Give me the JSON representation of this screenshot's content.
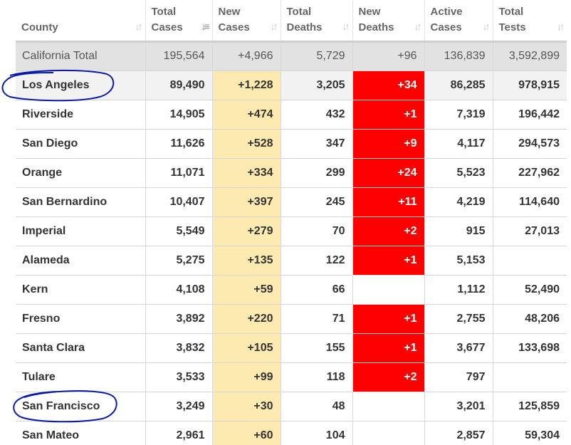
{
  "headers": [
    {
      "line1": "County",
      "line2": "",
      "icon": "sort-icon"
    },
    {
      "line1": "Total",
      "line2": "Cases",
      "icon": "sort-desc-icon"
    },
    {
      "line1": "New",
      "line2": "Cases",
      "icon": "sort-icon"
    },
    {
      "line1": "Total",
      "line2": "Deaths",
      "icon": "sort-icon"
    },
    {
      "line1": "New",
      "line2": "Deaths",
      "icon": "sort-icon"
    },
    {
      "line1": "Active",
      "line2": "Cases",
      "icon": "sort-icon"
    },
    {
      "line1": "Total",
      "line2": "Tests",
      "icon": "sort-icon"
    }
  ],
  "colors": {
    "new_cases_bg": "#fdeab0",
    "new_deaths_bg": "#ff0000",
    "total_row_bg": "#e2e2e2",
    "annotation_circle": "#0a1aa8"
  },
  "rows": [
    {
      "county": "California Total",
      "total_cases": "195,564",
      "new_cases": "+4,966",
      "total_deaths": "5,729",
      "new_deaths": "+96",
      "active_cases": "136,839",
      "total_tests": "3,592,899",
      "is_total": true
    },
    {
      "county": "Los Angeles",
      "total_cases": "89,490",
      "new_cases": "+1,228",
      "total_deaths": "3,205",
      "new_deaths": "+34",
      "active_cases": "86,285",
      "total_tests": "978,915",
      "highlight": true,
      "circled": true
    },
    {
      "county": "Riverside",
      "total_cases": "14,905",
      "new_cases": "+474",
      "total_deaths": "432",
      "new_deaths": "+1",
      "active_cases": "7,319",
      "total_tests": "196,442"
    },
    {
      "county": "San Diego",
      "total_cases": "11,626",
      "new_cases": "+528",
      "total_deaths": "347",
      "new_deaths": "+9",
      "active_cases": "4,117",
      "total_tests": "294,573"
    },
    {
      "county": "Orange",
      "total_cases": "11,071",
      "new_cases": "+334",
      "total_deaths": "299",
      "new_deaths": "+24",
      "active_cases": "5,523",
      "total_tests": "227,962"
    },
    {
      "county": "San Bernardino",
      "total_cases": "10,407",
      "new_cases": "+397",
      "total_deaths": "245",
      "new_deaths": "+11",
      "active_cases": "4,219",
      "total_tests": "114,640"
    },
    {
      "county": "Imperial",
      "total_cases": "5,549",
      "new_cases": "+279",
      "total_deaths": "70",
      "new_deaths": "+2",
      "active_cases": "915",
      "total_tests": "27,013"
    },
    {
      "county": "Alameda",
      "total_cases": "5,275",
      "new_cases": "+135",
      "total_deaths": "122",
      "new_deaths": "+1",
      "active_cases": "5,153",
      "total_tests": ""
    },
    {
      "county": "Kern",
      "total_cases": "4,108",
      "new_cases": "+59",
      "total_deaths": "66",
      "new_deaths": "",
      "active_cases": "1,112",
      "total_tests": "52,490"
    },
    {
      "county": "Fresno",
      "total_cases": "3,892",
      "new_cases": "+220",
      "total_deaths": "71",
      "new_deaths": "+1",
      "active_cases": "2,755",
      "total_tests": "48,206"
    },
    {
      "county": "Santa Clara",
      "total_cases": "3,832",
      "new_cases": "+105",
      "total_deaths": "155",
      "new_deaths": "+1",
      "active_cases": "3,677",
      "total_tests": "133,698"
    },
    {
      "county": "Tulare",
      "total_cases": "3,533",
      "new_cases": "+99",
      "total_deaths": "118",
      "new_deaths": "+2",
      "active_cases": "797",
      "total_tests": ""
    },
    {
      "county": "San Francisco",
      "total_cases": "3,249",
      "new_cases": "+30",
      "total_deaths": "48",
      "new_deaths": "",
      "active_cases": "3,201",
      "total_tests": "125,859",
      "circled": true
    },
    {
      "county": "San Mateo",
      "total_cases": "2,961",
      "new_cases": "+60",
      "total_deaths": "104",
      "new_deaths": "",
      "active_cases": "2,857",
      "total_tests": "59,304"
    }
  ]
}
